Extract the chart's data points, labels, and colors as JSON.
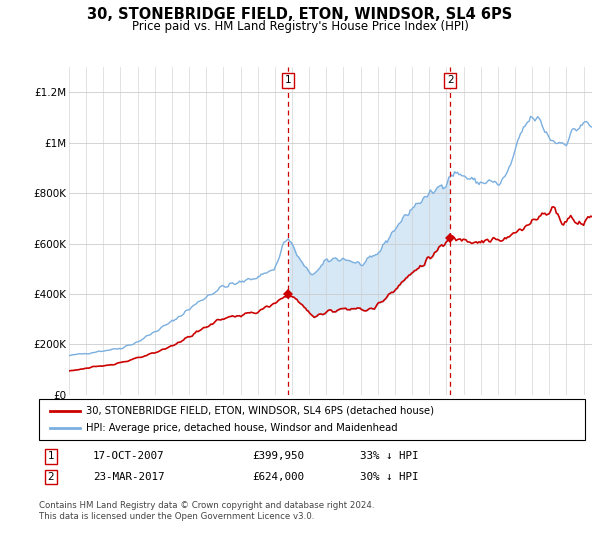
{
  "title": "30, STONEBRIDGE FIELD, ETON, WINDSOR, SL4 6PS",
  "subtitle": "Price paid vs. HM Land Registry's House Price Index (HPI)",
  "legend_line1": "30, STONEBRIDGE FIELD, ETON, WINDSOR, SL4 6PS (detached house)",
  "legend_line2": "HPI: Average price, detached house, Windsor and Maidenhead",
  "footer": "Contains HM Land Registry data © Crown copyright and database right 2024.\nThis data is licensed under the Open Government Licence v3.0.",
  "purchase1_date": "17-OCT-2007",
  "purchase1_price": "£399,950",
  "purchase1_hpi": "33% ↓ HPI",
  "purchase2_date": "23-MAR-2017",
  "purchase2_price": "£624,000",
  "purchase2_hpi": "30% ↓ HPI",
  "hpi_color": "#7aafe0",
  "price_color": "#cc0000",
  "shaded_color": "#d6e8f5",
  "purchase1_x": 2007.79,
  "purchase1_y": 399950,
  "purchase2_x": 2017.22,
  "purchase2_y": 624000,
  "xmin": 1995.0,
  "xmax": 2025.5,
  "ylim": [
    0,
    1300000
  ],
  "yticks": [
    0,
    200000,
    400000,
    600000,
    800000,
    1000000,
    1200000
  ],
  "ytick_labels": [
    "£0",
    "£200K",
    "£400K",
    "£600K",
    "£800K",
    "£1M",
    "£1.2M"
  ]
}
